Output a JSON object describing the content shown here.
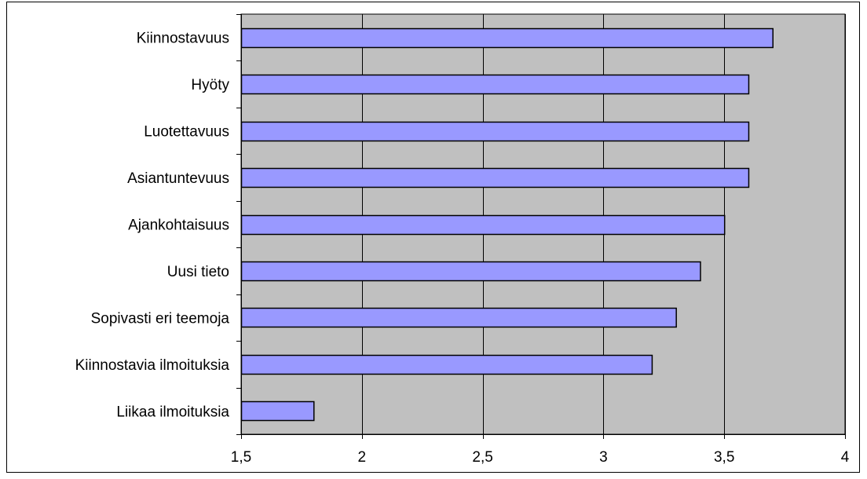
{
  "chart_data": {
    "type": "bar",
    "orientation": "horizontal",
    "title": "",
    "xlabel": "",
    "ylabel": "",
    "categories": [
      "Kiinnostavuus",
      "Hyöty",
      "Luotettavuus",
      "Asiantuntevuus",
      "Ajankohtaisuus",
      "Uusi tieto",
      "Sopivasti eri teemoja",
      "Kiinnostavia ilmoituksia",
      "Liikaa ilmoituksia"
    ],
    "values": [
      3.7,
      3.6,
      3.6,
      3.6,
      3.5,
      3.4,
      3.3,
      3.2,
      1.8
    ],
    "xlim": [
      1.5,
      4
    ],
    "xticks": [
      1.5,
      2,
      2.5,
      3,
      3.5,
      4
    ],
    "xtick_labels": [
      "1,5",
      "2",
      "2,5",
      "3",
      "3,5",
      "4"
    ],
    "grid": "vertical",
    "legend": "none",
    "colors": {
      "bar_fill": "#9999ff",
      "bar_stroke": "#000000",
      "plot_background": "#c0c0c0",
      "gridline": "#000000"
    }
  }
}
